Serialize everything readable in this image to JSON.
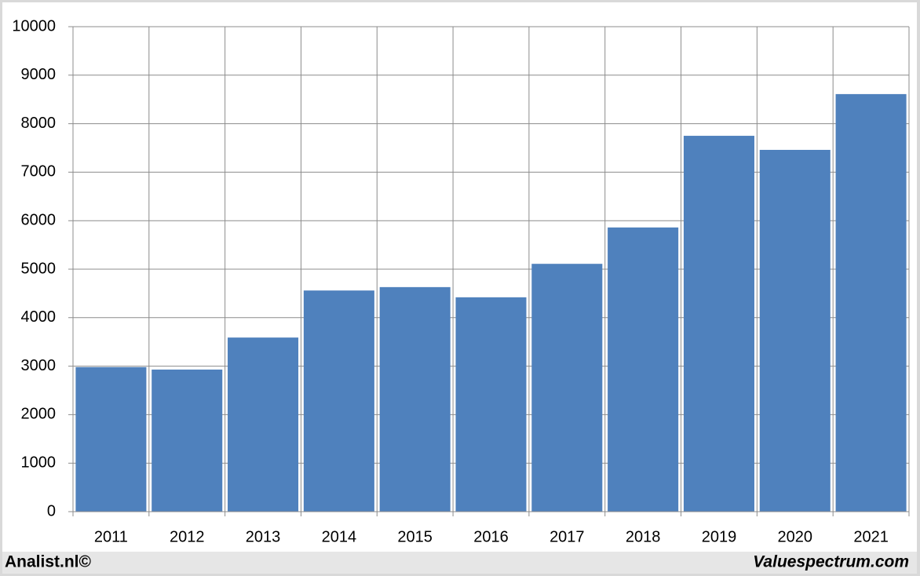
{
  "chart_data": {
    "type": "bar",
    "categories": [
      "2011",
      "2012",
      "2013",
      "2014",
      "2015",
      "2016",
      "2017",
      "2018",
      "2019",
      "2020",
      "2021"
    ],
    "values": [
      2980,
      2930,
      3590,
      4560,
      4630,
      4420,
      5110,
      5860,
      7750,
      7460,
      8610
    ],
    "color": "#4f81bd",
    "ylim": [
      0,
      10000
    ],
    "yticks": [
      0,
      1000,
      2000,
      3000,
      4000,
      5000,
      6000,
      7000,
      8000,
      9000,
      10000
    ],
    "grid": true,
    "footer_left": "Analist.nl©",
    "footer_right": "Valuespectrum.com"
  }
}
